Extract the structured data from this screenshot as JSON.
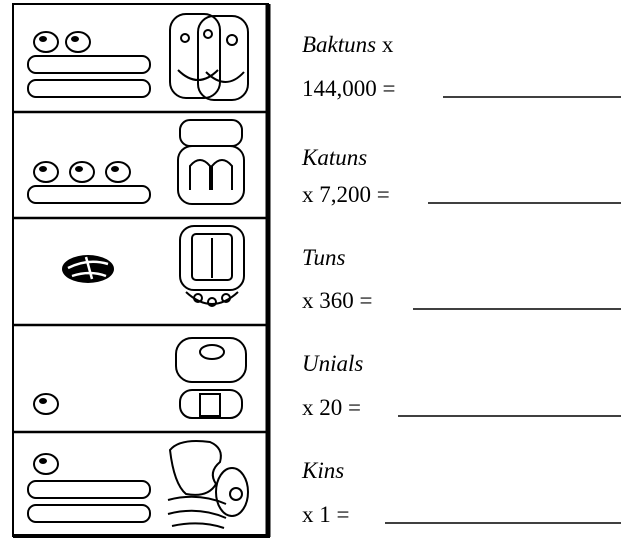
{
  "rows": [
    {
      "unit": "Baktuns",
      "unit_suffix": "x",
      "second_line": "144,000 ="
    },
    {
      "unit": "Katuns",
      "second_line": "x 7,200 ="
    },
    {
      "unit": "Tuns",
      "second_line": "x 360 ="
    },
    {
      "unit": "Unials",
      "second_line": "x 20 ="
    },
    {
      "unit": "Kins",
      "second_line": "x 1 ="
    }
  ]
}
